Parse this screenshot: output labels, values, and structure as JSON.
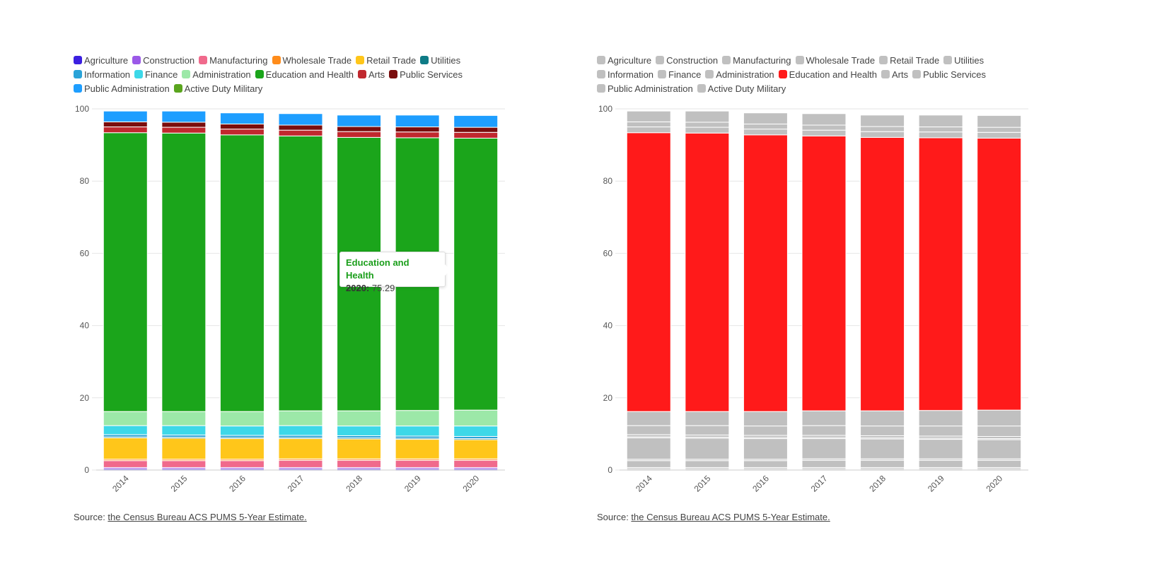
{
  "left_panel": {
    "source_prefix": "Source: ",
    "source_link": "the Census Bureau ACS PUMS 5-Year Estimate.",
    "tooltip": {
      "series": "Education and Health",
      "year_label": "2020:",
      "value": "75.29"
    }
  },
  "right_panel": {
    "source_prefix": "Source: ",
    "source_link": "the Census Bureau ACS PUMS 5-Year Estimate.",
    "highlight_series": "Education and Health",
    "highlight_color": "#ff1a1a",
    "muted_color": "#c0c0c0"
  },
  "chart_data": [
    {
      "type": "bar",
      "stacked": true,
      "categories": [
        "2014",
        "2015",
        "2016",
        "2017",
        "2018",
        "2019",
        "2020"
      ],
      "ylim": [
        0,
        100
      ],
      "yticks": [
        0,
        20,
        40,
        60,
        80,
        100
      ],
      "grid": true,
      "legend_position": "top-left",
      "series": [
        {
          "name": "Agriculture",
          "color": "#3b1fe0",
          "values": [
            0.3,
            0.3,
            0.3,
            0.3,
            0.3,
            0.3,
            0.3
          ]
        },
        {
          "name": "Construction",
          "color": "#9b59e8",
          "values": [
            0.4,
            0.4,
            0.4,
            0.4,
            0.4,
            0.4,
            0.4
          ]
        },
        {
          "name": "Manufacturing",
          "color": "#f06a8c",
          "values": [
            1.9,
            1.9,
            1.9,
            2.0,
            2.0,
            2.0,
            2.0
          ]
        },
        {
          "name": "Wholesale Trade",
          "color": "#ff8c1a",
          "values": [
            0.4,
            0.4,
            0.4,
            0.4,
            0.4,
            0.4,
            0.4
          ]
        },
        {
          "name": "Retail Trade",
          "color": "#ffc61a",
          "values": [
            5.9,
            5.8,
            5.7,
            5.6,
            5.5,
            5.4,
            5.3
          ]
        },
        {
          "name": "Utilities",
          "color": "#0e7b86",
          "values": [
            0.3,
            0.3,
            0.3,
            0.3,
            0.3,
            0.3,
            0.3
          ]
        },
        {
          "name": "Information",
          "color": "#2aa3d8",
          "values": [
            0.6,
            0.6,
            0.6,
            0.6,
            0.6,
            0.6,
            0.6
          ]
        },
        {
          "name": "Finance",
          "color": "#3dd8e8",
          "values": [
            2.5,
            2.6,
            2.6,
            2.7,
            2.7,
            2.8,
            2.9
          ]
        },
        {
          "name": "Administration",
          "color": "#9ce8a8",
          "values": [
            3.9,
            3.9,
            4.0,
            4.1,
            4.2,
            4.3,
            4.4
          ]
        },
        {
          "name": "Education and Health",
          "color": "#1ba51b",
          "values": [
            77.2,
            77.1,
            76.6,
            76.1,
            75.7,
            75.5,
            75.29
          ]
        },
        {
          "name": "Arts",
          "color": "#c0282e",
          "values": [
            1.6,
            1.6,
            1.6,
            1.6,
            1.6,
            1.6,
            1.6
          ]
        },
        {
          "name": "Public Services",
          "color": "#7a0d0d",
          "values": [
            1.4,
            1.4,
            1.4,
            1.4,
            1.4,
            1.4,
            1.4
          ]
        },
        {
          "name": "Public Administration",
          "color": "#1e9eff",
          "values": [
            3.0,
            3.1,
            3.1,
            3.2,
            3.2,
            3.3,
            3.3
          ]
        },
        {
          "name": "Active Duty Military",
          "color": "#5aa51e",
          "values": [
            0.1,
            0.1,
            0.1,
            0.1,
            0.1,
            0.1,
            0.1
          ]
        }
      ]
    },
    {
      "type": "bar",
      "stacked": true,
      "categories": [
        "2014",
        "2015",
        "2016",
        "2017",
        "2018",
        "2019",
        "2020"
      ],
      "ylim": [
        0,
        100
      ],
      "yticks": [
        0,
        20,
        40,
        60,
        80,
        100
      ],
      "grid": true,
      "legend_position": "top-left",
      "series_ref": "same as chart 1; only 'Education and Health' highlighted"
    }
  ]
}
